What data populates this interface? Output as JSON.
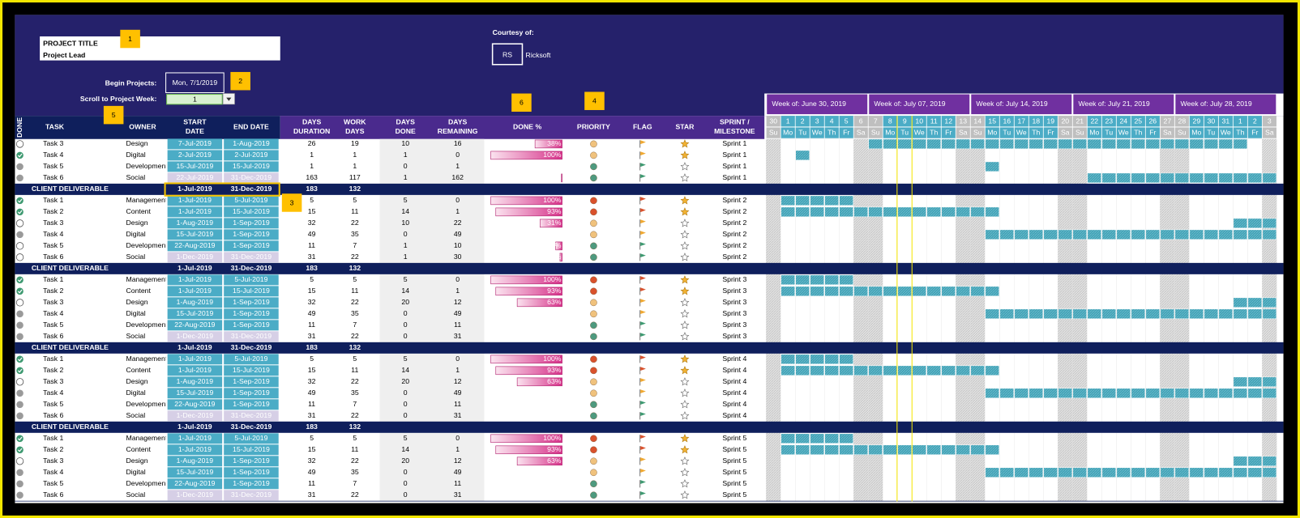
{
  "header": {
    "project_title": "PROJECT TITLE",
    "project_lead": "Project Lead",
    "courtesy": "Courtesy of:",
    "logo_mark": "RS",
    "logo_text": "Ricksoft",
    "begin_label": "Begin Projects:",
    "begin_value": "Mon, 7/1/2019",
    "scroll_label": "Scroll to Project Week:",
    "scroll_value": "1"
  },
  "callouts": [
    "1",
    "2",
    "3",
    "4",
    "5",
    "6"
  ],
  "columns": [
    [
      "DONE"
    ],
    [
      "TASK"
    ],
    [
      "OWNER"
    ],
    [
      "START",
      "DATE"
    ],
    [
      "END DATE"
    ],
    [
      "DAYS",
      "DURATION"
    ],
    [
      "WORK",
      "DAYS"
    ],
    [
      "DAYS",
      "DONE"
    ],
    [
      "DAYS",
      "REMAINING"
    ],
    [
      "DONE %"
    ],
    [
      "PRIORITY"
    ],
    [
      "FLAG"
    ],
    [
      "STAR"
    ],
    [
      "SPRINT /",
      "MILESTONE"
    ]
  ],
  "weeks": [
    "Week of: June 30, 2019",
    "Week of: July 07, 2019",
    "Week of: July 14, 2019",
    "Week of: July 21, 2019",
    "Week of: July 28, 2019"
  ],
  "days": [
    30,
    1,
    2,
    3,
    4,
    5,
    6,
    7,
    8,
    9,
    10,
    11,
    12,
    13,
    14,
    15,
    16,
    17,
    18,
    19,
    20,
    21,
    22,
    23,
    24,
    25,
    26,
    27,
    28,
    29,
    30,
    31,
    1,
    2,
    3
  ],
  "day_letters": [
    "Su",
    "Mo",
    "Tu",
    "We",
    "Th",
    "Fr",
    "Sa",
    "Su",
    "Mo",
    "Tu",
    "We",
    "Th",
    "Fr",
    "Sa",
    "Su",
    "Mo",
    "Tu",
    "We",
    "Th",
    "Fr",
    "Sa",
    "Su",
    "Mo",
    "Tu",
    "We",
    "Th",
    "Fr",
    "Sa",
    "Su",
    "Mo",
    "Tu",
    "We",
    "Th",
    "Fr",
    "Sa"
  ],
  "rows": [
    {
      "kind": "task",
      "status": "open",
      "task": "Task 3",
      "owner": "Design",
      "start": "7-Jul-2019",
      "end": "1-Aug-2019",
      "duration": 26,
      "work_days": 19,
      "days_done": 10,
      "days_remaining": 16,
      "done_pct": 38,
      "done_label": "38%",
      "priority": "#f0c27d",
      "flag": "#f0a830",
      "star": true,
      "sprint": "Sprint 1",
      "date_fill": "#4bacc6"
    },
    {
      "kind": "task",
      "status": "done",
      "task": "Task 4",
      "owner": "Digital",
      "start": "2-Jul-2019",
      "end": "2-Jul-2019",
      "duration": 1,
      "work_days": 1,
      "days_done": 1,
      "days_remaining": 0,
      "done_pct": 100,
      "done_label": "100%",
      "priority": "#f0c27d",
      "flag": "#f0a830",
      "star": true,
      "sprint": "Sprint 1",
      "date_fill": "#4bacc6"
    },
    {
      "kind": "task",
      "status": "gray",
      "task": "Task 5",
      "owner": "Development",
      "start": "15-Jul-2019",
      "end": "15-Jul-2019",
      "duration": 1,
      "work_days": 1,
      "days_done": 0,
      "days_remaining": 1,
      "priority": "#4e9a7f",
      "flag": "#3d9970",
      "star": false,
      "sprint": "Sprint 1",
      "date_fill": "#4bacc6"
    },
    {
      "kind": "task",
      "status": "gray",
      "task": "Task 6",
      "owner": "Social",
      "start": "22-Jul-2019",
      "end": "31-Dec-2019",
      "duration": 163,
      "work_days": 117,
      "days_done": 1,
      "days_remaining": 162,
      "done_pct": 1,
      "done_label": "1%",
      "priority": "#4e9a7f",
      "flag": "#3d9970",
      "star": false,
      "sprint": "Sprint 1",
      "date_fill": "#d6cfe6"
    },
    {
      "kind": "deliverable",
      "label": "CLIENT DELIVERABLE",
      "start": "1-Jul-2019",
      "end": "31-Dec-2019",
      "duration": 183,
      "work_days": 132
    },
    {
      "kind": "task",
      "status": "done",
      "task": "Task 1",
      "owner": "Management",
      "start": "1-Jul-2019",
      "end": "5-Jul-2019",
      "duration": 5,
      "work_days": 5,
      "days_done": 5,
      "days_remaining": 0,
      "done_pct": 100,
      "done_label": "100%",
      "priority": "#d9512c",
      "flag": "#d9512c",
      "star": true,
      "sprint": "Sprint 2",
      "date_fill": "#4bacc6"
    },
    {
      "kind": "task",
      "status": "done",
      "task": "Task 2",
      "owner": "Content",
      "start": "1-Jul-2019",
      "end": "15-Jul-2019",
      "duration": 15,
      "work_days": 11,
      "days_done": 14,
      "days_remaining": 1,
      "done_pct": 93,
      "done_label": "93%",
      "priority": "#d9512c",
      "flag": "#d9512c",
      "star": true,
      "sprint": "Sprint 2",
      "date_fill": "#4bacc6"
    },
    {
      "kind": "task",
      "status": "open",
      "task": "Task 3",
      "owner": "Design",
      "start": "1-Aug-2019",
      "end": "1-Sep-2019",
      "duration": 32,
      "work_days": 22,
      "days_done": 10,
      "days_remaining": 22,
      "done_pct": 31,
      "done_label": "31%",
      "priority": "#f0c27d",
      "flag": "#f0a830",
      "star": false,
      "sprint": "Sprint 2",
      "date_fill": "#4bacc6"
    },
    {
      "kind": "task",
      "status": "gray",
      "task": "Task 4",
      "owner": "Digital",
      "start": "15-Jul-2019",
      "end": "1-Sep-2019",
      "duration": 49,
      "work_days": 35,
      "days_done": 0,
      "days_remaining": 49,
      "priority": "#f0c27d",
      "flag": "#f0a830",
      "star": false,
      "sprint": "Sprint 2",
      "date_fill": "#4bacc6"
    },
    {
      "kind": "task",
      "status": "open",
      "task": "Task 5",
      "owner": "Development",
      "start": "22-Aug-2019",
      "end": "1-Sep-2019",
      "duration": 11,
      "work_days": 7,
      "days_done": 1,
      "days_remaining": 10,
      "done_pct": 9,
      "done_label": "9%",
      "priority": "#4e9a7f",
      "flag": "#3d9970",
      "star": false,
      "sprint": "Sprint 2",
      "date_fill": "#4bacc6"
    },
    {
      "kind": "task",
      "status": "open",
      "task": "Task 6",
      "owner": "Social",
      "start": "1-Dec-2019",
      "end": "31-Dec-2019",
      "duration": 31,
      "work_days": 22,
      "days_done": 1,
      "days_remaining": 30,
      "done_pct": 3,
      "done_label": "3%",
      "priority": "#4e9a7f",
      "flag": "#3d9970",
      "star": false,
      "sprint": "Sprint 2",
      "date_fill": "#d6cfe6"
    },
    {
      "kind": "deliverable",
      "label": "CLIENT DELIVERABLE",
      "start": "1-Jul-2019",
      "end": "31-Dec-2019",
      "duration": 183,
      "work_days": 132
    },
    {
      "kind": "task",
      "status": "done",
      "task": "Task 1",
      "owner": "Management",
      "start": "1-Jul-2019",
      "end": "5-Jul-2019",
      "duration": 5,
      "work_days": 5,
      "days_done": 5,
      "days_remaining": 0,
      "done_pct": 100,
      "done_label": "100%",
      "priority": "#d9512c",
      "flag": "#d9512c",
      "star": true,
      "sprint": "Sprint 3",
      "date_fill": "#4bacc6"
    },
    {
      "kind": "task",
      "status": "done",
      "task": "Task 2",
      "owner": "Content",
      "start": "1-Jul-2019",
      "end": "15-Jul-2019",
      "duration": 15,
      "work_days": 11,
      "days_done": 14,
      "days_remaining": 1,
      "done_pct": 93,
      "done_label": "93%",
      "priority": "#d9512c",
      "flag": "#d9512c",
      "star": true,
      "sprint": "Sprint 3",
      "date_fill": "#4bacc6"
    },
    {
      "kind": "task",
      "status": "open",
      "task": "Task 3",
      "owner": "Design",
      "start": "1-Aug-2019",
      "end": "1-Sep-2019",
      "duration": 32,
      "work_days": 22,
      "days_done": 20,
      "days_remaining": 12,
      "done_pct": 63,
      "done_label": "63%",
      "priority": "#f0c27d",
      "flag": "#f0a830",
      "star": false,
      "sprint": "Sprint 3",
      "date_fill": "#4bacc6"
    },
    {
      "kind": "task",
      "status": "gray",
      "task": "Task 4",
      "owner": "Digital",
      "start": "15-Jul-2019",
      "end": "1-Sep-2019",
      "duration": 49,
      "work_days": 35,
      "days_done": 0,
      "days_remaining": 49,
      "priority": "#f0c27d",
      "flag": "#f0a830",
      "star": false,
      "sprint": "Sprint 3",
      "date_fill": "#4bacc6"
    },
    {
      "kind": "task",
      "status": "gray",
      "task": "Task 5",
      "owner": "Development",
      "start": "22-Aug-2019",
      "end": "1-Sep-2019",
      "duration": 11,
      "work_days": 7,
      "days_done": 0,
      "days_remaining": 11,
      "priority": "#4e9a7f",
      "flag": "#3d9970",
      "star": false,
      "sprint": "Sprint 3",
      "date_fill": "#4bacc6"
    },
    {
      "kind": "task",
      "status": "gray",
      "task": "Task 6",
      "owner": "Social",
      "start": "1-Dec-2019",
      "end": "31-Dec-2019",
      "duration": 31,
      "work_days": 22,
      "days_done": 0,
      "days_remaining": 31,
      "priority": "#4e9a7f",
      "flag": "#3d9970",
      "star": false,
      "sprint": "Sprint 3",
      "date_fill": "#d6cfe6"
    },
    {
      "kind": "deliverable",
      "label": "CLIENT DELIVERABLE",
      "start": "1-Jul-2019",
      "end": "31-Dec-2019",
      "duration": 183,
      "work_days": 132
    },
    {
      "kind": "task",
      "status": "done",
      "task": "Task 1",
      "owner": "Management",
      "start": "1-Jul-2019",
      "end": "5-Jul-2019",
      "duration": 5,
      "work_days": 5,
      "days_done": 5,
      "days_remaining": 0,
      "done_pct": 100,
      "done_label": "100%",
      "priority": "#d9512c",
      "flag": "#d9512c",
      "star": true,
      "sprint": "Sprint 4",
      "date_fill": "#4bacc6"
    },
    {
      "kind": "task",
      "status": "done",
      "task": "Task 2",
      "owner": "Content",
      "start": "1-Jul-2019",
      "end": "15-Jul-2019",
      "duration": 15,
      "work_days": 11,
      "days_done": 14,
      "days_remaining": 1,
      "done_pct": 93,
      "done_label": "93%",
      "priority": "#d9512c",
      "flag": "#d9512c",
      "star": true,
      "sprint": "Sprint 4",
      "date_fill": "#4bacc6"
    },
    {
      "kind": "task",
      "status": "open",
      "task": "Task 3",
      "owner": "Design",
      "start": "1-Aug-2019",
      "end": "1-Sep-2019",
      "duration": 32,
      "work_days": 22,
      "days_done": 20,
      "days_remaining": 12,
      "done_pct": 63,
      "done_label": "63%",
      "priority": "#f0c27d",
      "flag": "#f0a830",
      "star": false,
      "sprint": "Sprint 4",
      "date_fill": "#4bacc6"
    },
    {
      "kind": "task",
      "status": "gray",
      "task": "Task 4",
      "owner": "Digital",
      "start": "15-Jul-2019",
      "end": "1-Sep-2019",
      "duration": 49,
      "work_days": 35,
      "days_done": 0,
      "days_remaining": 49,
      "priority": "#f0c27d",
      "flag": "#f0a830",
      "star": false,
      "sprint": "Sprint 4",
      "date_fill": "#4bacc6"
    },
    {
      "kind": "task",
      "status": "gray",
      "task": "Task 5",
      "owner": "Development",
      "start": "22-Aug-2019",
      "end": "1-Sep-2019",
      "duration": 11,
      "work_days": 7,
      "days_done": 0,
      "days_remaining": 11,
      "priority": "#4e9a7f",
      "flag": "#3d9970",
      "star": false,
      "sprint": "Sprint 4",
      "date_fill": "#4bacc6"
    },
    {
      "kind": "task",
      "status": "gray",
      "task": "Task 6",
      "owner": "Social",
      "start": "1-Dec-2019",
      "end": "31-Dec-2019",
      "duration": 31,
      "work_days": 22,
      "days_done": 0,
      "days_remaining": 31,
      "priority": "#4e9a7f",
      "flag": "#3d9970",
      "star": false,
      "sprint": "Sprint 4",
      "date_fill": "#d6cfe6"
    },
    {
      "kind": "deliverable",
      "label": "CLIENT DELIVERABLE",
      "start": "1-Jul-2019",
      "end": "31-Dec-2019",
      "duration": 183,
      "work_days": 132
    },
    {
      "kind": "task",
      "status": "done",
      "task": "Task 1",
      "owner": "Management",
      "start": "1-Jul-2019",
      "end": "5-Jul-2019",
      "duration": 5,
      "work_days": 5,
      "days_done": 5,
      "days_remaining": 0,
      "done_pct": 100,
      "done_label": "100%",
      "priority": "#d9512c",
      "flag": "#d9512c",
      "star": true,
      "sprint": "Sprint 5",
      "date_fill": "#4bacc6"
    },
    {
      "kind": "task",
      "status": "done",
      "task": "Task 2",
      "owner": "Content",
      "start": "1-Jul-2019",
      "end": "15-Jul-2019",
      "duration": 15,
      "work_days": 11,
      "days_done": 14,
      "days_remaining": 1,
      "done_pct": 93,
      "done_label": "93%",
      "priority": "#d9512c",
      "flag": "#d9512c",
      "star": true,
      "sprint": "Sprint 5",
      "date_fill": "#4bacc6"
    },
    {
      "kind": "task",
      "status": "open",
      "task": "Task 3",
      "owner": "Design",
      "start": "1-Aug-2019",
      "end": "1-Sep-2019",
      "duration": 32,
      "work_days": 22,
      "days_done": 20,
      "days_remaining": 12,
      "done_pct": 63,
      "done_label": "63%",
      "priority": "#f0c27d",
      "flag": "#f0a830",
      "star": false,
      "sprint": "Sprint 5",
      "date_fill": "#4bacc6"
    },
    {
      "kind": "task",
      "status": "gray",
      "task": "Task 4",
      "owner": "Digital",
      "start": "15-Jul-2019",
      "end": "1-Sep-2019",
      "duration": 49,
      "work_days": 35,
      "days_done": 0,
      "days_remaining": 49,
      "priority": "#f0c27d",
      "flag": "#f0a830",
      "star": false,
      "sprint": "Sprint 5",
      "date_fill": "#4bacc6"
    },
    {
      "kind": "task",
      "status": "gray",
      "task": "Task 5",
      "owner": "Development",
      "start": "22-Aug-2019",
      "end": "1-Sep-2019",
      "duration": 11,
      "work_days": 7,
      "days_done": 0,
      "days_remaining": 11,
      "priority": "#4e9a7f",
      "flag": "#3d9970",
      "star": false,
      "sprint": "Sprint 5",
      "date_fill": "#4bacc6"
    },
    {
      "kind": "task",
      "status": "gray",
      "task": "Task 6",
      "owner": "Social",
      "start": "1-Dec-2019",
      "end": "31-Dec-2019",
      "duration": 31,
      "work_days": 22,
      "days_done": 0,
      "days_remaining": 31,
      "priority": "#4e9a7f",
      "flag": "#3d9970",
      "star": false,
      "sprint": "Sprint 5",
      "date_fill": "#d6cfe6"
    }
  ]
}
